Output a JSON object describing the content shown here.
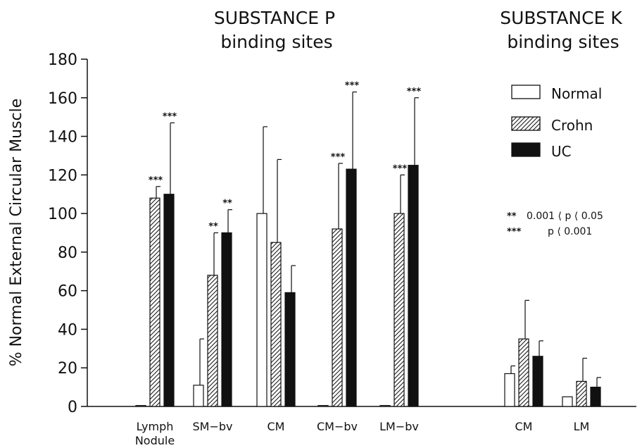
{
  "chart_data": {
    "type": "bar",
    "ylabel": "% Normal External Circular Muscle",
    "ylim": [
      0,
      180
    ],
    "yticks": [
      0,
      20,
      40,
      60,
      80,
      100,
      120,
      140,
      160,
      180
    ],
    "grid": false,
    "legend_position": "top-right",
    "group_titles": [
      {
        "line1": "SUBSTANCE P",
        "line2": "binding sites"
      },
      {
        "line1": "SUBSTANCE K",
        "line2": "binding sites"
      }
    ],
    "categories": [
      {
        "label": "Lymph",
        "label2": "Nodule",
        "group": 0
      },
      {
        "label": "SM−bv",
        "label2": "",
        "group": 0
      },
      {
        "label": "CM",
        "label2": "",
        "group": 0
      },
      {
        "label": "CM−bv",
        "label2": "",
        "group": 0
      },
      {
        "label": "LM−bv",
        "label2": "",
        "group": 0
      },
      {
        "label": "CM",
        "label2": "",
        "group": 1
      },
      {
        "label": "LM",
        "label2": "",
        "group": 1
      }
    ],
    "series": [
      {
        "name": "Normal",
        "fill": "none",
        "values": [
          0.5,
          11,
          100,
          0.5,
          0.5,
          17,
          5
        ],
        "errors": [
          0,
          24,
          45,
          0,
          0,
          4,
          0
        ],
        "significance": [
          "",
          "",
          "",
          "",
          "",
          "",
          ""
        ]
      },
      {
        "name": "Crohn",
        "fill": "hatch",
        "values": [
          108,
          68,
          85,
          92,
          100,
          35,
          13
        ],
        "errors": [
          6,
          22,
          43,
          34,
          20,
          20,
          12
        ],
        "significance": [
          "***",
          "**",
          "",
          "***",
          "***",
          "",
          ""
        ]
      },
      {
        "name": "UC",
        "fill": "solid",
        "values": [
          110,
          90,
          59,
          123,
          125,
          26,
          10
        ],
        "errors": [
          37,
          12,
          14,
          40,
          35,
          8,
          5
        ],
        "significance": [
          "***",
          "**",
          "",
          "***",
          "***",
          "",
          ""
        ]
      }
    ],
    "annotations": [
      {
        "stars": "**",
        "text": "0.001 ⟨ p ⟨ 0.05"
      },
      {
        "stars": "***",
        "text": "p ⟨ 0.001"
      }
    ],
    "colors": {
      "ink": "#111111",
      "background": "#ffffff"
    }
  }
}
